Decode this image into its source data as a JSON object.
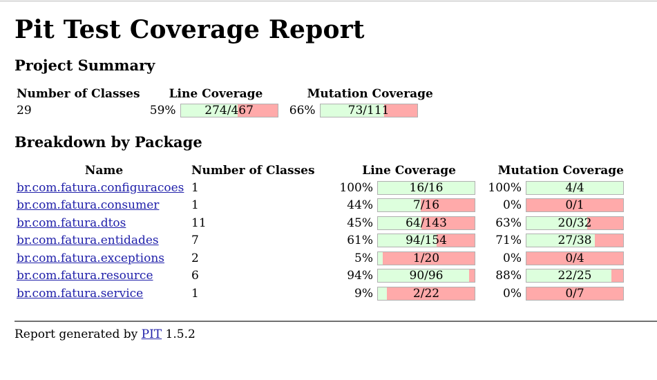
{
  "title": "Pit Test Coverage Report",
  "summary": {
    "heading": "Project Summary",
    "headers": {
      "classes": "Number of Classes",
      "line": "Line Coverage",
      "mutation": "Mutation Coverage"
    },
    "classes": "29",
    "line_pct": "59%",
    "line_ratio": "274/467",
    "line_fraction": 0.59,
    "mutation_pct": "66%",
    "mutation_ratio": "73/111",
    "mutation_fraction": 0.66
  },
  "breakdown": {
    "heading": "Breakdown by Package",
    "headers": {
      "name": "Name",
      "classes": "Number of Classes",
      "line": "Line Coverage",
      "mutation": "Mutation Coverage"
    },
    "rows": [
      {
        "name": "br.com.fatura.configuracoes",
        "classes": "1",
        "line_pct": "100%",
        "line_ratio": "16/16",
        "line_fraction": 1.0,
        "mut_pct": "100%",
        "mut_ratio": "4/4",
        "mut_fraction": 1.0
      },
      {
        "name": "br.com.fatura.consumer",
        "classes": "1",
        "line_pct": "44%",
        "line_ratio": "7/16",
        "line_fraction": 0.44,
        "mut_pct": "0%",
        "mut_ratio": "0/1",
        "mut_fraction": 0.0
      },
      {
        "name": "br.com.fatura.dtos",
        "classes": "11",
        "line_pct": "45%",
        "line_ratio": "64/143",
        "line_fraction": 0.45,
        "mut_pct": "63%",
        "mut_ratio": "20/32",
        "mut_fraction": 0.63
      },
      {
        "name": "br.com.fatura.entidades",
        "classes": "7",
        "line_pct": "61%",
        "line_ratio": "94/154",
        "line_fraction": 0.61,
        "mut_pct": "71%",
        "mut_ratio": "27/38",
        "mut_fraction": 0.71
      },
      {
        "name": "br.com.fatura.exceptions",
        "classes": "2",
        "line_pct": "5%",
        "line_ratio": "1/20",
        "line_fraction": 0.05,
        "mut_pct": "0%",
        "mut_ratio": "0/4",
        "mut_fraction": 0.0
      },
      {
        "name": "br.com.fatura.resource",
        "classes": "6",
        "line_pct": "94%",
        "line_ratio": "90/96",
        "line_fraction": 0.94,
        "mut_pct": "88%",
        "mut_ratio": "22/25",
        "mut_fraction": 0.88
      },
      {
        "name": "br.com.fatura.service",
        "classes": "1",
        "line_pct": "9%",
        "line_ratio": "2/22",
        "line_fraction": 0.09,
        "mut_pct": "0%",
        "mut_ratio": "0/7",
        "mut_fraction": 0.0
      }
    ]
  },
  "footer": {
    "prefix": "Report generated by",
    "link": "PIT",
    "version": "1.5.2"
  },
  "colors": {
    "covered": "#ddffdd",
    "uncovered": "#ffaaaa",
    "link": "#2020aa"
  }
}
